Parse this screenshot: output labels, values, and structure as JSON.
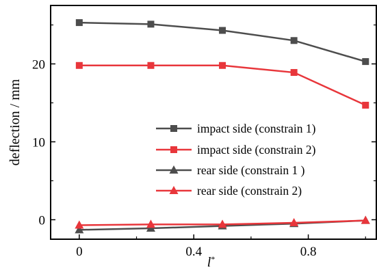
{
  "chart_data": {
    "type": "line",
    "xlabel": "l",
    "xlabel_superscript": "*",
    "ylabel": "deflection / mm",
    "xlim": [
      -0.1,
      1.04
    ],
    "ylim": [
      -2.5,
      27.5
    ],
    "xticks": [
      0,
      0.4,
      0.8
    ],
    "xtick_labels": [
      "0",
      "0.4",
      "0.8"
    ],
    "xticks_minor": [
      0.2,
      0.6,
      1.0
    ],
    "yticks": [
      0,
      10,
      20
    ],
    "ytick_labels": [
      "0",
      "10",
      "20"
    ],
    "yticks_minor": [
      5,
      15,
      25
    ],
    "grid": false,
    "legend_position": "center-right",
    "x": [
      0,
      0.25,
      0.5,
      0.75,
      1.0
    ],
    "series": [
      {
        "name": "impact side (constrain 1)",
        "values": [
          25.3,
          25.1,
          24.3,
          23.0,
          20.3
        ],
        "color": "#4d4d4d",
        "marker": "square"
      },
      {
        "name": "impact side (constrain 2)",
        "values": [
          19.8,
          19.8,
          19.8,
          18.9,
          14.7
        ],
        "color": "#e8363b",
        "marker": "square"
      },
      {
        "name": "rear side (constrain 1 )",
        "values": [
          -1.3,
          -1.1,
          -0.8,
          -0.5,
          -0.1
        ],
        "color": "#4d4d4d",
        "marker": "triangle"
      },
      {
        "name": "rear side (constrain 2)",
        "values": [
          -0.7,
          -0.6,
          -0.6,
          -0.4,
          -0.1
        ],
        "color": "#e8363b",
        "marker": "triangle"
      }
    ]
  }
}
